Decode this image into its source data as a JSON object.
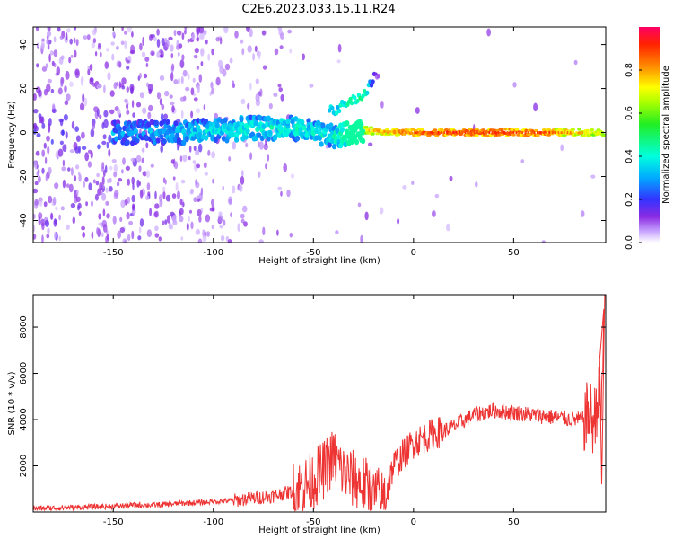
{
  "title": "C2E6.2023.033.15.11.R24",
  "chart_data": [
    {
      "type": "heatmap",
      "xlabel": "Height of straight line (km)",
      "ylabel": "Frequency (Hz)",
      "xlim": [
        -190,
        96
      ],
      "ylim": [
        -50,
        48
      ],
      "x_ticks": [
        -150,
        -100,
        -50,
        0,
        50
      ],
      "y_ticks": [
        -40,
        -20,
        0,
        20,
        40
      ],
      "x_tick_labels": [
        "-150",
        "-100",
        "-50",
        "0",
        "50"
      ],
      "y_tick_labels": [
        "-40",
        "-20",
        "0",
        "20",
        "40"
      ],
      "colorbar": {
        "label": "Normalized spectral amplitude",
        "range": [
          0,
          1
        ],
        "ticks": [
          0.0,
          0.2,
          0.4,
          0.6,
          0.8
        ],
        "tick_labels": [
          "0.0",
          "0.2",
          "0.4",
          "0.6",
          "0.8"
        ]
      },
      "main_track": [
        {
          "x": -145,
          "f": 0,
          "amp": 0.3
        },
        {
          "x": -120,
          "f": 0,
          "amp": 0.35
        },
        {
          "x": -100,
          "f": 1,
          "amp": 0.38
        },
        {
          "x": -80,
          "f": 2,
          "amp": 0.4
        },
        {
          "x": -60,
          "f": 2,
          "amp": 0.4
        },
        {
          "x": -40,
          "f": -2,
          "amp": 0.4
        },
        {
          "x": -25,
          "f": 1,
          "amp": 0.75
        },
        {
          "x": 0,
          "f": 0,
          "amp": 0.85
        },
        {
          "x": 20,
          "f": 0,
          "amp": 0.9
        },
        {
          "x": 60,
          "f": 0,
          "amp": 0.9
        },
        {
          "x": 94,
          "f": 0,
          "amp": 0.7
        }
      ],
      "secondary_track": [
        {
          "x": -40,
          "f": 10,
          "amp": 0.35
        },
        {
          "x": -25,
          "f": 17,
          "amp": 0.45
        },
        {
          "x": -18,
          "f": 27,
          "amp": 0.1
        }
      ]
    },
    {
      "type": "line",
      "xlabel": "Height of straight line (km)",
      "ylabel": "SNR (10 * v/v)",
      "xlim": [
        -190,
        96
      ],
      "ylim": [
        0,
        9400
      ],
      "x_ticks": [
        -150,
        -100,
        -50,
        0,
        50
      ],
      "y_ticks": [
        2000,
        4000,
        6000,
        8000
      ],
      "x_tick_labels": [
        "-150",
        "-100",
        "-50",
        "0",
        "50"
      ],
      "y_tick_labels": [
        "2000",
        "4000",
        "6000",
        "8000"
      ],
      "series": [
        {
          "color": "#ee3333",
          "x": [
            -190,
            -170,
            -150,
            -140,
            -130,
            -120,
            -110,
            -100,
            -90,
            -80,
            -70,
            -60,
            -55,
            -50,
            -45,
            -40,
            -35,
            -30,
            -25,
            -20,
            -15,
            -10,
            -5,
            0,
            5,
            10,
            15,
            20,
            30,
            40,
            50,
            60,
            70,
            80,
            85,
            88,
            90,
            92,
            94,
            95
          ],
          "values": [
            150,
            200,
            250,
            300,
            300,
            350,
            400,
            450,
            500,
            600,
            700,
            900,
            1100,
            1400,
            1800,
            2400,
            1700,
            1400,
            1200,
            800,
            600,
            2000,
            2500,
            3000,
            3200,
            3400,
            3500,
            3700,
            4200,
            4400,
            4300,
            4200,
            4100,
            4000,
            4000,
            4300,
            3800,
            5000,
            4500,
            8000
          ]
        }
      ]
    }
  ]
}
